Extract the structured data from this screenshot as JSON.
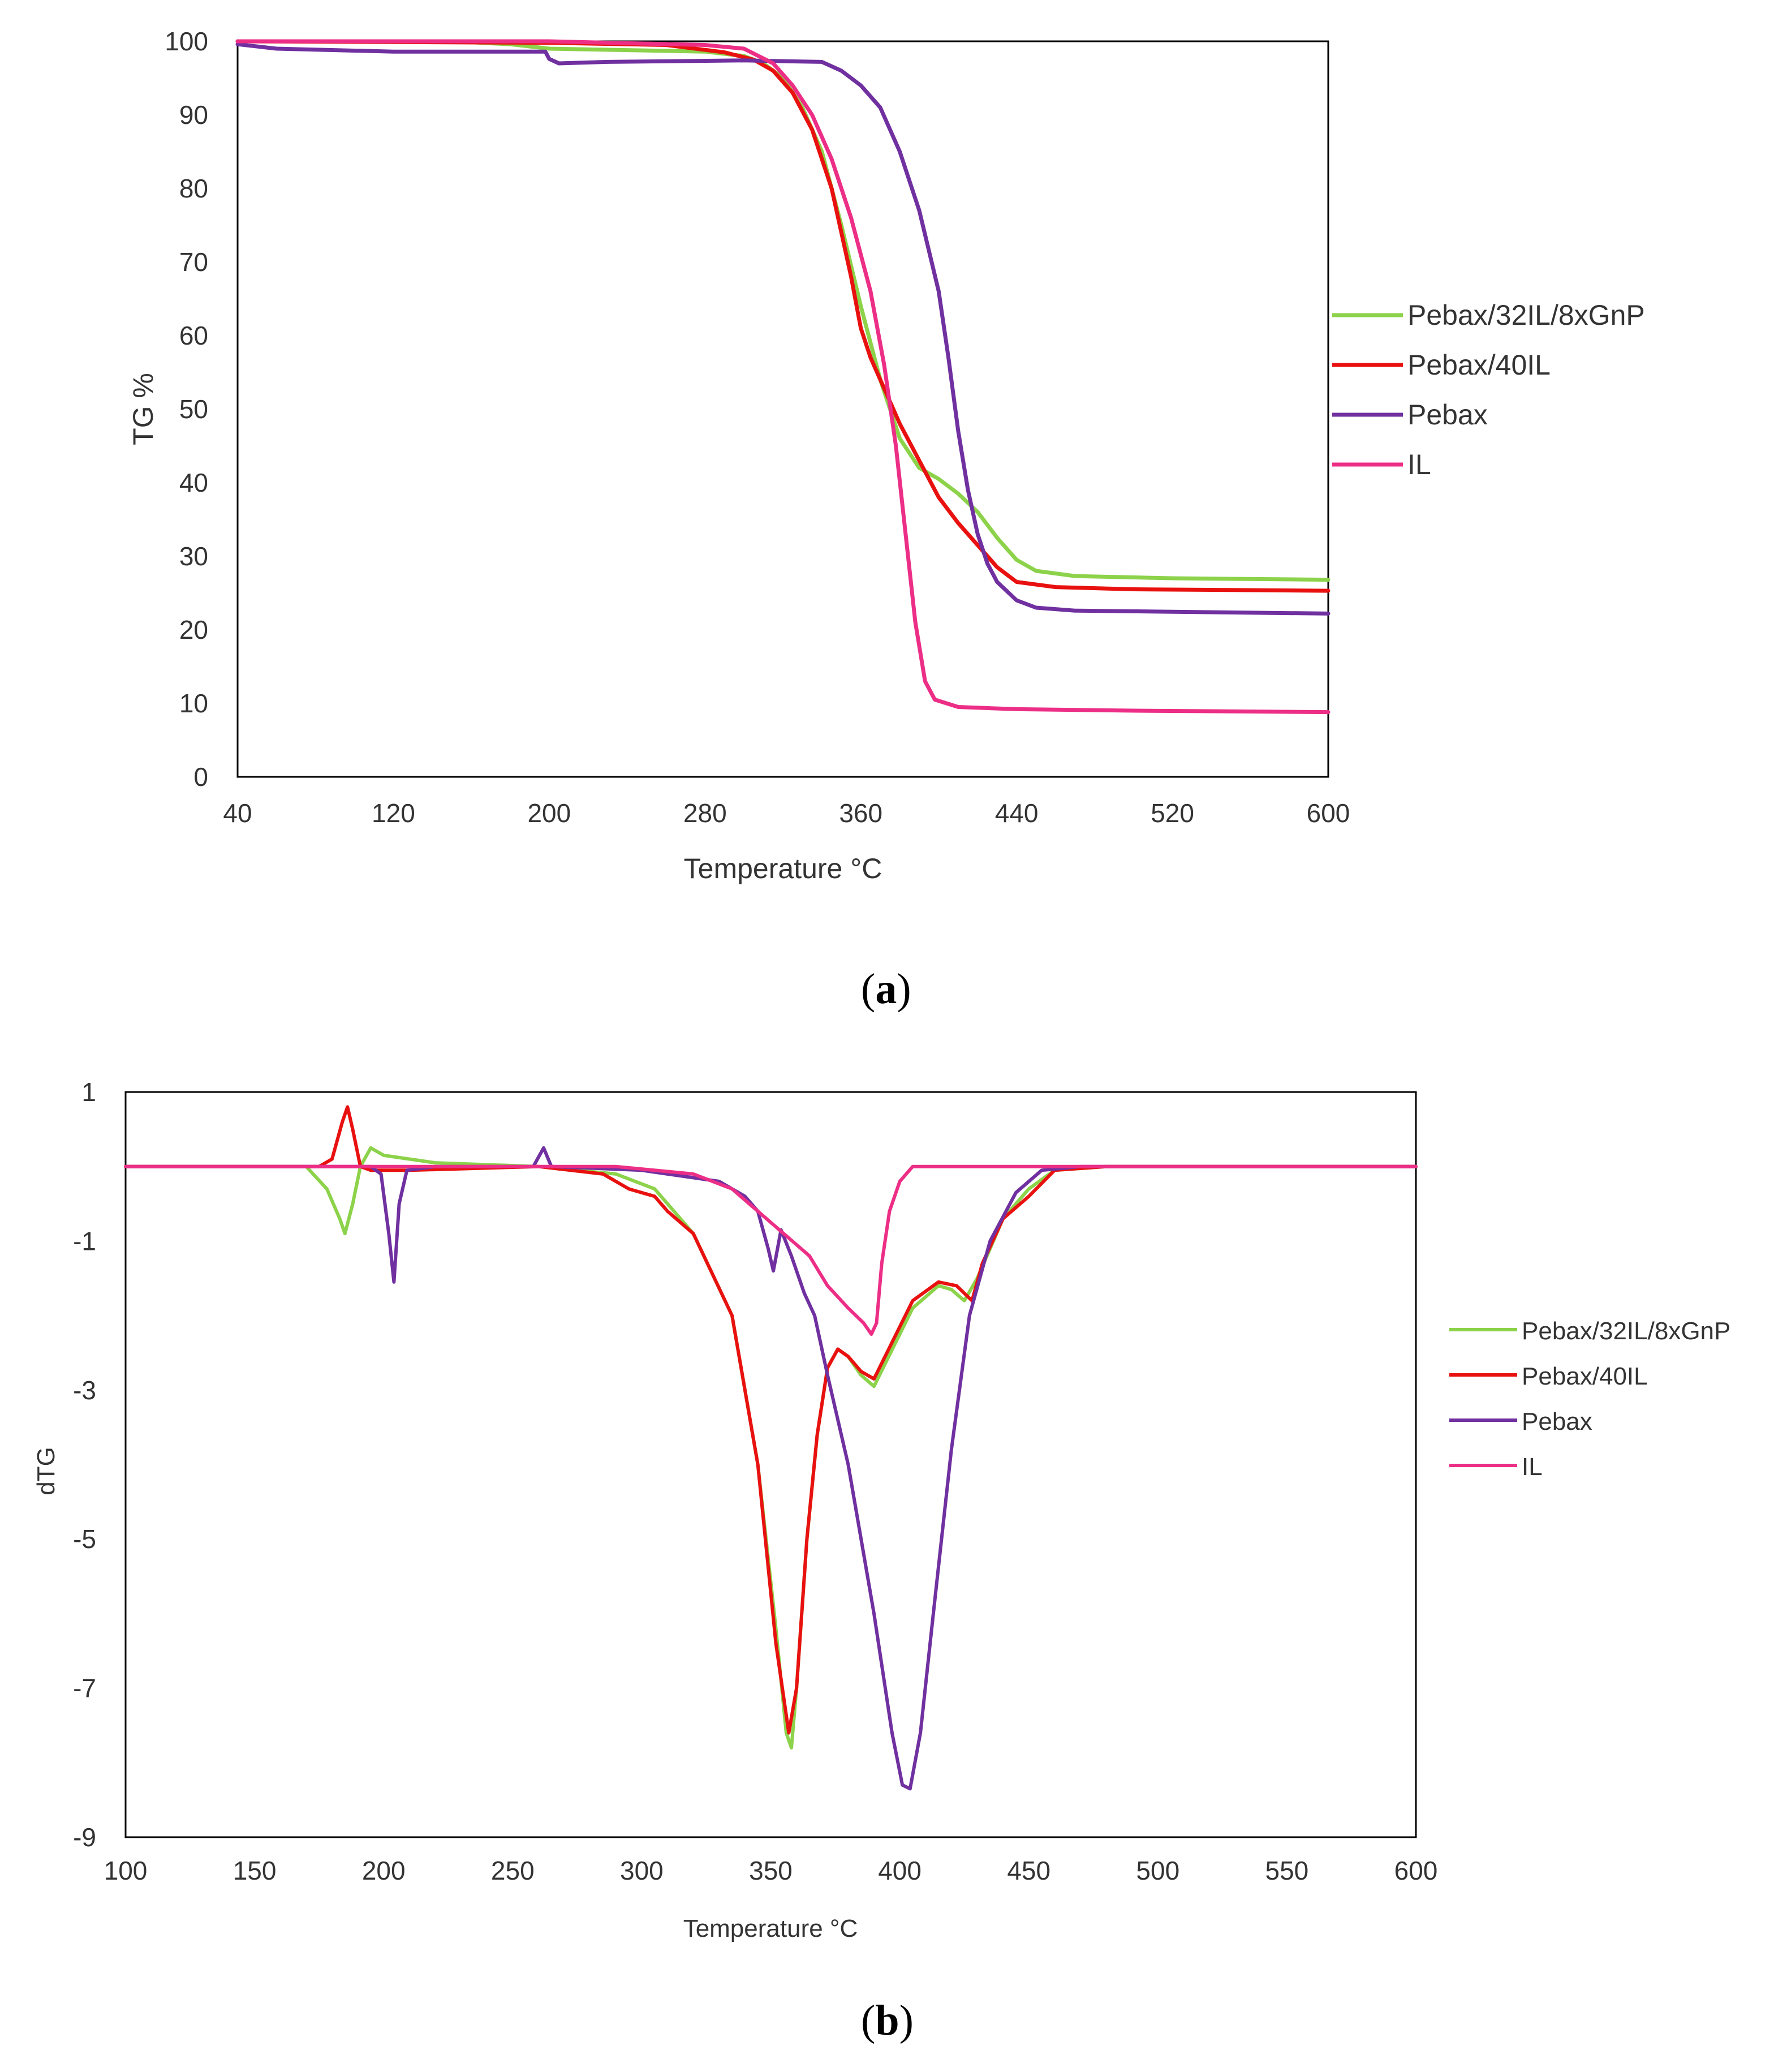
{
  "panels": [
    {
      "open": "(",
      "letter": "a",
      "close": ")"
    },
    {
      "open": "(",
      "letter": "b",
      "close": ")"
    }
  ],
  "chart_data": [
    {
      "type": "line",
      "title": "",
      "xlabel": "Temperature °C",
      "ylabel": "TG %",
      "xlim": [
        40,
        600
      ],
      "ylim": [
        0,
        100
      ],
      "xticks": [
        40,
        120,
        200,
        280,
        360,
        440,
        520,
        600
      ],
      "yticks": [
        0,
        10,
        20,
        30,
        40,
        50,
        60,
        70,
        80,
        90,
        100
      ],
      "grid": false,
      "legend_position": "right",
      "series": [
        {
          "name": "Pebax/32IL/8xGnP",
          "color": "#8CD24A",
          "points": [
            [
              40,
              100
            ],
            [
              150,
              100
            ],
            [
              180,
              99.6
            ],
            [
              200,
              99
            ],
            [
              240,
              98.8
            ],
            [
              280,
              98.6
            ],
            [
              300,
              98
            ],
            [
              310,
              97
            ],
            [
              320,
              95
            ],
            [
              330,
              91
            ],
            [
              340,
              85
            ],
            [
              350,
              75
            ],
            [
              360,
              64
            ],
            [
              370,
              54
            ],
            [
              380,
              46
            ],
            [
              390,
              42
            ],
            [
              400,
              40.5
            ],
            [
              410,
              38.5
            ],
            [
              420,
              36
            ],
            [
              430,
              32.5
            ],
            [
              440,
              29.5
            ],
            [
              450,
              28
            ],
            [
              470,
              27.3
            ],
            [
              520,
              27
            ],
            [
              600,
              26.8
            ]
          ]
        },
        {
          "name": "Pebax/40IL",
          "color": "#E8110F",
          "points": [
            [
              40,
              100
            ],
            [
              200,
              99.8
            ],
            [
              260,
              99.5
            ],
            [
              290,
              98.5
            ],
            [
              305,
              97.5
            ],
            [
              315,
              96
            ],
            [
              325,
              93
            ],
            [
              335,
              88
            ],
            [
              345,
              80
            ],
            [
              355,
              68
            ],
            [
              360,
              61
            ],
            [
              365,
              57
            ],
            [
              370,
              54
            ],
            [
              375,
              51
            ],
            [
              380,
              48
            ],
            [
              390,
              43
            ],
            [
              400,
              38
            ],
            [
              410,
              34.5
            ],
            [
              420,
              31.5
            ],
            [
              430,
              28.5
            ],
            [
              440,
              26.5
            ],
            [
              460,
              25.8
            ],
            [
              500,
              25.5
            ],
            [
              600,
              25.3
            ]
          ]
        },
        {
          "name": "Pebax",
          "color": "#7030A0",
          "points": [
            [
              40,
              99.6
            ],
            [
              60,
              99
            ],
            [
              120,
              98.6
            ],
            [
              198,
              98.6
            ],
            [
              200,
              97.6
            ],
            [
              205,
              97
            ],
            [
              230,
              97.2
            ],
            [
              300,
              97.4
            ],
            [
              340,
              97.2
            ],
            [
              350,
              96
            ],
            [
              360,
              94
            ],
            [
              370,
              91
            ],
            [
              380,
              85
            ],
            [
              390,
              77
            ],
            [
              400,
              66
            ],
            [
              405,
              57
            ],
            [
              410,
              47
            ],
            [
              415,
              39
            ],
            [
              420,
              33
            ],
            [
              425,
              29
            ],
            [
              430,
              26.5
            ],
            [
              440,
              24
            ],
            [
              450,
              23
            ],
            [
              470,
              22.6
            ],
            [
              600,
              22.2
            ]
          ]
        },
        {
          "name": "IL",
          "color": "#EC2E86",
          "points": [
            [
              40,
              100
            ],
            [
              200,
              100
            ],
            [
              280,
              99.5
            ],
            [
              300,
              99
            ],
            [
              315,
              97
            ],
            [
              325,
              94
            ],
            [
              335,
              90
            ],
            [
              345,
              84
            ],
            [
              355,
              76
            ],
            [
              365,
              66
            ],
            [
              372,
              56
            ],
            [
              378,
              45
            ],
            [
              383,
              33
            ],
            [
              388,
              21
            ],
            [
              393,
              13
            ],
            [
              398,
              10.5
            ],
            [
              410,
              9.5
            ],
            [
              440,
              9.2
            ],
            [
              500,
              9
            ],
            [
              600,
              8.8
            ]
          ]
        }
      ]
    },
    {
      "type": "line",
      "title": "",
      "xlabel": "Temperature °C",
      "ylabel": "dTG",
      "xlim": [
        100,
        600
      ],
      "ylim": [
        -9,
        1
      ],
      "xticks": [
        100,
        150,
        200,
        250,
        300,
        350,
        400,
        450,
        500,
        550,
        600
      ],
      "yticks": [
        -9,
        -7,
        -5,
        -3,
        -1,
        1
      ],
      "grid": false,
      "legend_position": "right",
      "series": [
        {
          "name": "Pebax/32IL/8xGnP",
          "color": "#8CD24A",
          "points": [
            [
              100,
              0
            ],
            [
              170,
              0
            ],
            [
              178,
              -0.3
            ],
            [
              183,
              -0.7
            ],
            [
              185,
              -0.9
            ],
            [
              188,
              -0.5
            ],
            [
              191,
              0
            ],
            [
              195,
              0.25
            ],
            [
              200,
              0.15
            ],
            [
              210,
              0.1
            ],
            [
              220,
              0.05
            ],
            [
              260,
              0
            ],
            [
              290,
              -0.1
            ],
            [
              305,
              -0.3
            ],
            [
              320,
              -0.9
            ],
            [
              335,
              -2
            ],
            [
              345,
              -4
            ],
            [
              352,
              -6.2
            ],
            [
              356,
              -7.6
            ],
            [
              358,
              -7.8
            ],
            [
              360,
              -7
            ],
            [
              364,
              -5
            ],
            [
              368,
              -3.6
            ],
            [
              372,
              -2.7
            ],
            [
              376,
              -2.45
            ],
            [
              380,
              -2.55
            ],
            [
              385,
              -2.8
            ],
            [
              390,
              -2.95
            ],
            [
              395,
              -2.6
            ],
            [
              405,
              -1.9
            ],
            [
              415,
              -1.6
            ],
            [
              420,
              -1.65
            ],
            [
              425,
              -1.8
            ],
            [
              430,
              -1.5
            ],
            [
              440,
              -0.7
            ],
            [
              450,
              -0.3
            ],
            [
              460,
              -0.05
            ],
            [
              480,
              0
            ],
            [
              600,
              0
            ]
          ]
        },
        {
          "name": "Pebax/40IL",
          "color": "#E8110F",
          "points": [
            [
              100,
              0
            ],
            [
              175,
              0
            ],
            [
              180,
              0.1
            ],
            [
              184,
              0.6
            ],
            [
              186,
              0.8
            ],
            [
              188,
              0.5
            ],
            [
              191,
              0
            ],
            [
              195,
              -0.05
            ],
            [
              210,
              -0.05
            ],
            [
              260,
              0
            ],
            [
              285,
              -0.1
            ],
            [
              295,
              -0.3
            ],
            [
              305,
              -0.4
            ],
            [
              310,
              -0.6
            ],
            [
              320,
              -0.9
            ],
            [
              335,
              -2
            ],
            [
              345,
              -4
            ],
            [
              352,
              -6.4
            ],
            [
              357,
              -7.6
            ],
            [
              360,
              -7
            ],
            [
              364,
              -5
            ],
            [
              368,
              -3.6
            ],
            [
              372,
              -2.7
            ],
            [
              376,
              -2.45
            ],
            [
              380,
              -2.55
            ],
            [
              385,
              -2.75
            ],
            [
              390,
              -2.85
            ],
            [
              395,
              -2.5
            ],
            [
              405,
              -1.8
            ],
            [
              415,
              -1.55
            ],
            [
              422,
              -1.6
            ],
            [
              428,
              -1.8
            ],
            [
              432,
              -1.3
            ],
            [
              440,
              -0.7
            ],
            [
              450,
              -0.4
            ],
            [
              460,
              -0.05
            ],
            [
              480,
              0
            ],
            [
              600,
              0
            ]
          ]
        },
        {
          "name": "Pebax",
          "color": "#7030A0",
          "points": [
            [
              100,
              0
            ],
            [
              195,
              0
            ],
            [
              199,
              -0.1
            ],
            [
              202,
              -0.9
            ],
            [
              204,
              -1.55
            ],
            [
              206,
              -0.5
            ],
            [
              209,
              -0.05
            ],
            [
              220,
              0
            ],
            [
              258,
              0
            ],
            [
              262,
              0.25
            ],
            [
              265,
              0
            ],
            [
              300,
              -0.05
            ],
            [
              330,
              -0.2
            ],
            [
              340,
              -0.4
            ],
            [
              345,
              -0.6
            ],
            [
              349,
              -1.1
            ],
            [
              351,
              -1.4
            ],
            [
              354,
              -0.85
            ],
            [
              358,
              -1.2
            ],
            [
              363,
              -1.7
            ],
            [
              367,
              -2
            ],
            [
              372,
              -2.8
            ],
            [
              380,
              -4
            ],
            [
              390,
              -6
            ],
            [
              397,
              -7.6
            ],
            [
              401,
              -8.3
            ],
            [
              404,
              -8.35
            ],
            [
              408,
              -7.6
            ],
            [
              413,
              -6
            ],
            [
              420,
              -3.8
            ],
            [
              427,
              -2
            ],
            [
              435,
              -1
            ],
            [
              445,
              -0.35
            ],
            [
              455,
              -0.05
            ],
            [
              470,
              0
            ],
            [
              600,
              0
            ]
          ]
        },
        {
          "name": "IL",
          "color": "#EC2E86",
          "points": [
            [
              100,
              0
            ],
            [
              250,
              0
            ],
            [
              290,
              0
            ],
            [
              320,
              -0.1
            ],
            [
              335,
              -0.3
            ],
            [
              345,
              -0.6
            ],
            [
              355,
              -0.9
            ],
            [
              365,
              -1.2
            ],
            [
              372,
              -1.6
            ],
            [
              380,
              -1.9
            ],
            [
              386,
              -2.1
            ],
            [
              389,
              -2.25
            ],
            [
              391,
              -2.1
            ],
            [
              393,
              -1.3
            ],
            [
              396,
              -0.6
            ],
            [
              400,
              -0.2
            ],
            [
              405,
              0
            ],
            [
              420,
              0
            ],
            [
              600,
              0
            ]
          ]
        }
      ]
    }
  ]
}
